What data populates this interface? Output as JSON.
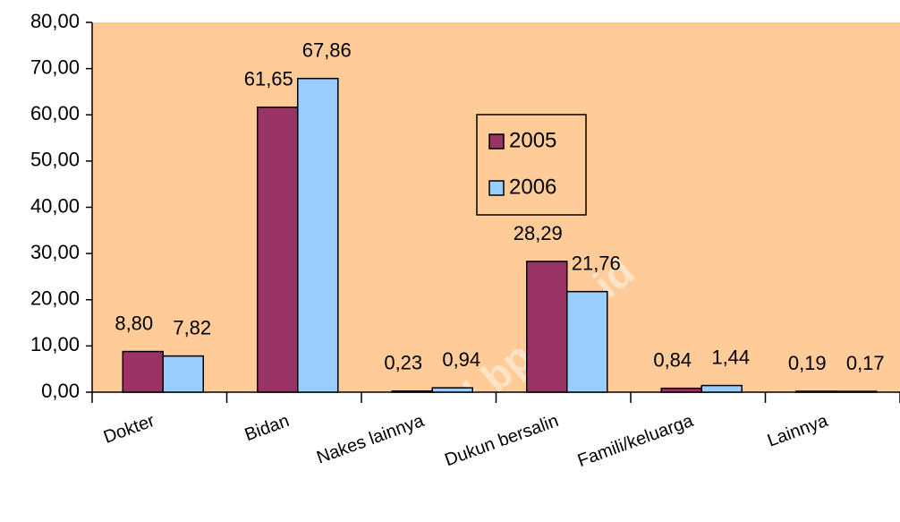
{
  "chart_data": {
    "type": "bar",
    "categories": [
      "Dokter",
      "Bidan",
      "Nakes lainnya",
      "Dukun bersalin",
      "Famili/keluarga",
      "Lainnya"
    ],
    "series": [
      {
        "name": "2005",
        "color": "#993366",
        "values": [
          8.8,
          61.65,
          0.23,
          28.29,
          0.84,
          0.19
        ],
        "value_labels": [
          "8,80",
          "61,65",
          "0,23",
          "28,29",
          "0,84",
          "0,19"
        ]
      },
      {
        "name": "2006",
        "color": "#99ccff",
        "values": [
          7.82,
          67.86,
          0.94,
          21.76,
          1.44,
          0.17
        ],
        "value_labels": [
          "7,82",
          "67,86",
          "0,94",
          "21,76",
          "1,44",
          "0,17"
        ]
      }
    ],
    "ylim": [
      0,
      80
    ],
    "yticks": [
      {
        "value": 0,
        "label": "0,00"
      },
      {
        "value": 10,
        "label": "10,00"
      },
      {
        "value": 20,
        "label": "20,00"
      },
      {
        "value": 30,
        "label": "30,00"
      },
      {
        "value": 40,
        "label": "40,00"
      },
      {
        "value": 50,
        "label": "50,00"
      },
      {
        "value": 60,
        "label": "60,00"
      },
      {
        "value": 70,
        "label": "70,00"
      },
      {
        "value": 80,
        "label": "80,00"
      }
    ],
    "plot_background": "#ffcc99",
    "watermark": "sumsel.bps.go.id"
  }
}
